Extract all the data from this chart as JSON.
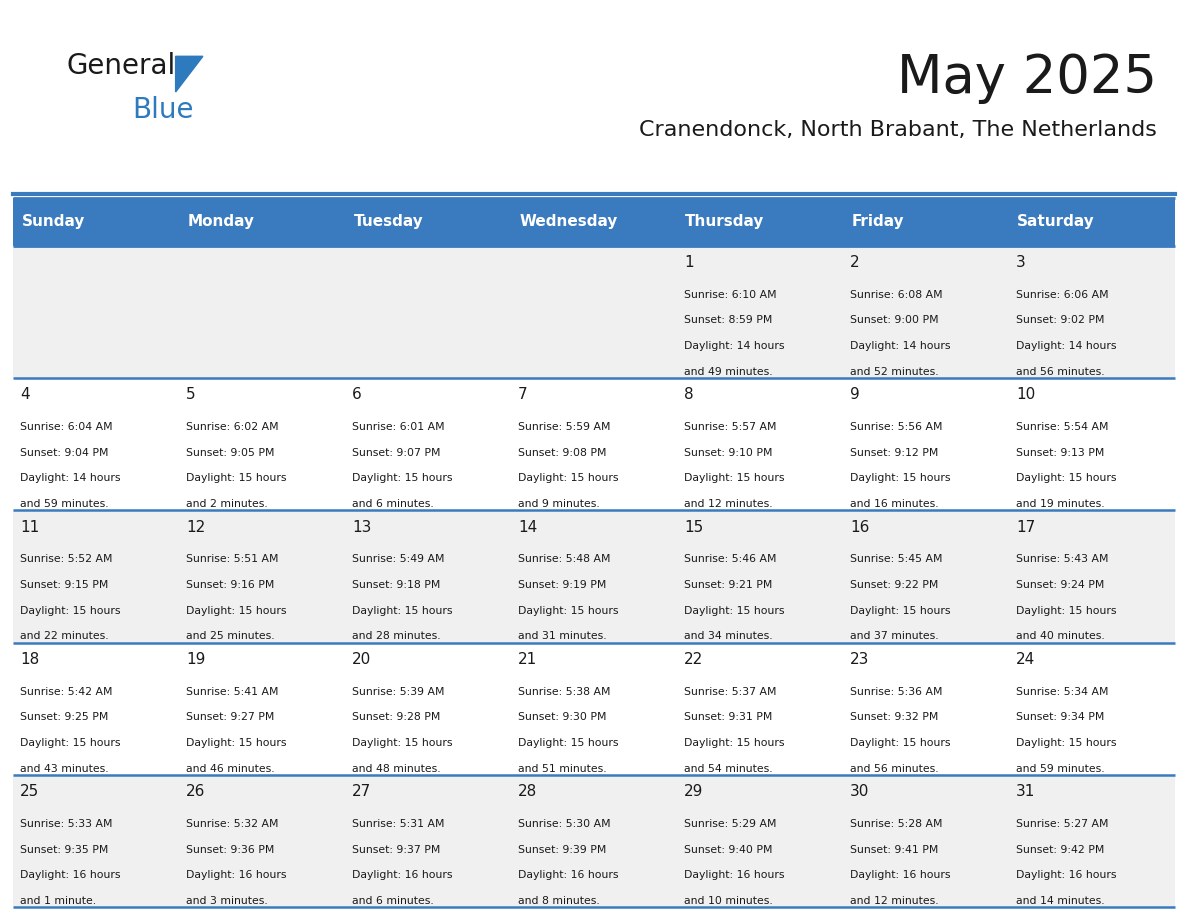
{
  "title": "May 2025",
  "subtitle": "Cranendonck, North Brabant, The Netherlands",
  "days_of_week": [
    "Sunday",
    "Monday",
    "Tuesday",
    "Wednesday",
    "Thursday",
    "Friday",
    "Saturday"
  ],
  "header_bg": "#3a7abf",
  "header_text": "#ffffff",
  "cell_bg_light": "#f0f0f0",
  "cell_bg_white": "#ffffff",
  "divider_color": "#3a7abf",
  "text_color": "#1a1a1a",
  "weeks": [
    {
      "days": [
        {
          "day": null,
          "sunrise": null,
          "sunset": null,
          "daylight_line1": null,
          "daylight_line2": null
        },
        {
          "day": null,
          "sunrise": null,
          "sunset": null,
          "daylight_line1": null,
          "daylight_line2": null
        },
        {
          "day": null,
          "sunrise": null,
          "sunset": null,
          "daylight_line1": null,
          "daylight_line2": null
        },
        {
          "day": null,
          "sunrise": null,
          "sunset": null,
          "daylight_line1": null,
          "daylight_line2": null
        },
        {
          "day": 1,
          "sunrise": "6:10 AM",
          "sunset": "8:59 PM",
          "daylight_line1": "Daylight: 14 hours",
          "daylight_line2": "and 49 minutes."
        },
        {
          "day": 2,
          "sunrise": "6:08 AM",
          "sunset": "9:00 PM",
          "daylight_line1": "Daylight: 14 hours",
          "daylight_line2": "and 52 minutes."
        },
        {
          "day": 3,
          "sunrise": "6:06 AM",
          "sunset": "9:02 PM",
          "daylight_line1": "Daylight: 14 hours",
          "daylight_line2": "and 56 minutes."
        }
      ]
    },
    {
      "days": [
        {
          "day": 4,
          "sunrise": "6:04 AM",
          "sunset": "9:04 PM",
          "daylight_line1": "Daylight: 14 hours",
          "daylight_line2": "and 59 minutes."
        },
        {
          "day": 5,
          "sunrise": "6:02 AM",
          "sunset": "9:05 PM",
          "daylight_line1": "Daylight: 15 hours",
          "daylight_line2": "and 2 minutes."
        },
        {
          "day": 6,
          "sunrise": "6:01 AM",
          "sunset": "9:07 PM",
          "daylight_line1": "Daylight: 15 hours",
          "daylight_line2": "and 6 minutes."
        },
        {
          "day": 7,
          "sunrise": "5:59 AM",
          "sunset": "9:08 PM",
          "daylight_line1": "Daylight: 15 hours",
          "daylight_line2": "and 9 minutes."
        },
        {
          "day": 8,
          "sunrise": "5:57 AM",
          "sunset": "9:10 PM",
          "daylight_line1": "Daylight: 15 hours",
          "daylight_line2": "and 12 minutes."
        },
        {
          "day": 9,
          "sunrise": "5:56 AM",
          "sunset": "9:12 PM",
          "daylight_line1": "Daylight: 15 hours",
          "daylight_line2": "and 16 minutes."
        },
        {
          "day": 10,
          "sunrise": "5:54 AM",
          "sunset": "9:13 PM",
          "daylight_line1": "Daylight: 15 hours",
          "daylight_line2": "and 19 minutes."
        }
      ]
    },
    {
      "days": [
        {
          "day": 11,
          "sunrise": "5:52 AM",
          "sunset": "9:15 PM",
          "daylight_line1": "Daylight: 15 hours",
          "daylight_line2": "and 22 minutes."
        },
        {
          "day": 12,
          "sunrise": "5:51 AM",
          "sunset": "9:16 PM",
          "daylight_line1": "Daylight: 15 hours",
          "daylight_line2": "and 25 minutes."
        },
        {
          "day": 13,
          "sunrise": "5:49 AM",
          "sunset": "9:18 PM",
          "daylight_line1": "Daylight: 15 hours",
          "daylight_line2": "and 28 minutes."
        },
        {
          "day": 14,
          "sunrise": "5:48 AM",
          "sunset": "9:19 PM",
          "daylight_line1": "Daylight: 15 hours",
          "daylight_line2": "and 31 minutes."
        },
        {
          "day": 15,
          "sunrise": "5:46 AM",
          "sunset": "9:21 PM",
          "daylight_line1": "Daylight: 15 hours",
          "daylight_line2": "and 34 minutes."
        },
        {
          "day": 16,
          "sunrise": "5:45 AM",
          "sunset": "9:22 PM",
          "daylight_line1": "Daylight: 15 hours",
          "daylight_line2": "and 37 minutes."
        },
        {
          "day": 17,
          "sunrise": "5:43 AM",
          "sunset": "9:24 PM",
          "daylight_line1": "Daylight: 15 hours",
          "daylight_line2": "and 40 minutes."
        }
      ]
    },
    {
      "days": [
        {
          "day": 18,
          "sunrise": "5:42 AM",
          "sunset": "9:25 PM",
          "daylight_line1": "Daylight: 15 hours",
          "daylight_line2": "and 43 minutes."
        },
        {
          "day": 19,
          "sunrise": "5:41 AM",
          "sunset": "9:27 PM",
          "daylight_line1": "Daylight: 15 hours",
          "daylight_line2": "and 46 minutes."
        },
        {
          "day": 20,
          "sunrise": "5:39 AM",
          "sunset": "9:28 PM",
          "daylight_line1": "Daylight: 15 hours",
          "daylight_line2": "and 48 minutes."
        },
        {
          "day": 21,
          "sunrise": "5:38 AM",
          "sunset": "9:30 PM",
          "daylight_line1": "Daylight: 15 hours",
          "daylight_line2": "and 51 minutes."
        },
        {
          "day": 22,
          "sunrise": "5:37 AM",
          "sunset": "9:31 PM",
          "daylight_line1": "Daylight: 15 hours",
          "daylight_line2": "and 54 minutes."
        },
        {
          "day": 23,
          "sunrise": "5:36 AM",
          "sunset": "9:32 PM",
          "daylight_line1": "Daylight: 15 hours",
          "daylight_line2": "and 56 minutes."
        },
        {
          "day": 24,
          "sunrise": "5:34 AM",
          "sunset": "9:34 PM",
          "daylight_line1": "Daylight: 15 hours",
          "daylight_line2": "and 59 minutes."
        }
      ]
    },
    {
      "days": [
        {
          "day": 25,
          "sunrise": "5:33 AM",
          "sunset": "9:35 PM",
          "daylight_line1": "Daylight: 16 hours",
          "daylight_line2": "and 1 minute."
        },
        {
          "day": 26,
          "sunrise": "5:32 AM",
          "sunset": "9:36 PM",
          "daylight_line1": "Daylight: 16 hours",
          "daylight_line2": "and 3 minutes."
        },
        {
          "day": 27,
          "sunrise": "5:31 AM",
          "sunset": "9:37 PM",
          "daylight_line1": "Daylight: 16 hours",
          "daylight_line2": "and 6 minutes."
        },
        {
          "day": 28,
          "sunrise": "5:30 AM",
          "sunset": "9:39 PM",
          "daylight_line1": "Daylight: 16 hours",
          "daylight_line2": "and 8 minutes."
        },
        {
          "day": 29,
          "sunrise": "5:29 AM",
          "sunset": "9:40 PM",
          "daylight_line1": "Daylight: 16 hours",
          "daylight_line2": "and 10 minutes."
        },
        {
          "day": 30,
          "sunrise": "5:28 AM",
          "sunset": "9:41 PM",
          "daylight_line1": "Daylight: 16 hours",
          "daylight_line2": "and 12 minutes."
        },
        {
          "day": 31,
          "sunrise": "5:27 AM",
          "sunset": "9:42 PM",
          "daylight_line1": "Daylight: 16 hours",
          "daylight_line2": "and 14 minutes."
        }
      ]
    }
  ]
}
